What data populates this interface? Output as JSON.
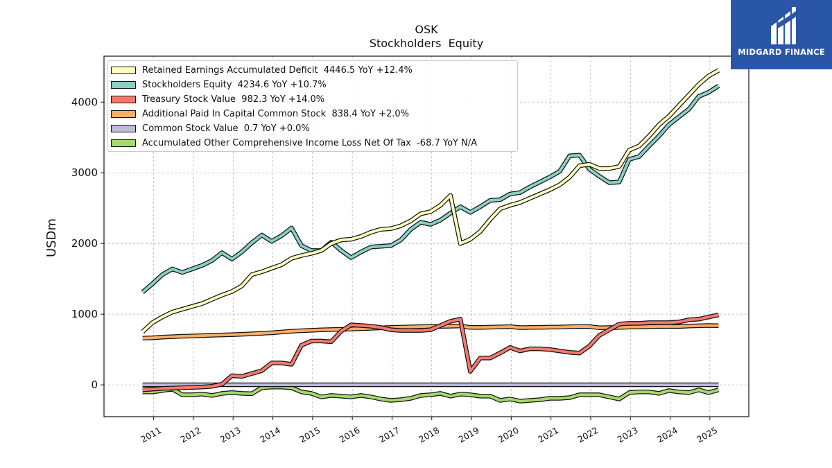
{
  "brand": {
    "name": "MIDGARD FINANCE",
    "background": "#2a56a8"
  },
  "chart_data": {
    "type": "line",
    "title": "OSK",
    "subtitle": "Stockholders  Equity",
    "ylabel": "USDm",
    "xlabel": "",
    "ylim": [
      -450,
      4650
    ],
    "xlim": [
      2009.75,
      2025.98
    ],
    "yticks": [
      0,
      1000,
      2000,
      3000,
      4000
    ],
    "xticks": [
      2011,
      2012,
      2013,
      2014,
      2015,
      2016,
      2017,
      2018,
      2019,
      2020,
      2021,
      2022,
      2023,
      2024,
      2025
    ],
    "grid": true,
    "legend_position": "top-left",
    "x": [
      2010.72,
      2010.97,
      2011.22,
      2011.47,
      2011.72,
      2011.97,
      2012.22,
      2012.47,
      2012.72,
      2012.97,
      2013.22,
      2013.47,
      2013.72,
      2013.97,
      2014.22,
      2014.47,
      2014.72,
      2014.97,
      2015.22,
      2015.47,
      2015.72,
      2015.97,
      2016.22,
      2016.47,
      2016.72,
      2016.97,
      2017.22,
      2017.47,
      2017.72,
      2017.97,
      2018.22,
      2018.47,
      2018.72,
      2018.97,
      2019.22,
      2019.47,
      2019.72,
      2019.97,
      2020.22,
      2020.47,
      2020.72,
      2020.97,
      2021.22,
      2021.47,
      2021.72,
      2021.97,
      2022.22,
      2022.47,
      2022.72,
      2022.97,
      2023.22,
      2023.47,
      2023.72,
      2023.97,
      2024.22,
      2024.47,
      2024.72,
      2024.97,
      2025.22
    ],
    "series": [
      {
        "name": "Retained Earnings Accumulated Deficit",
        "legend_label": "Retained Earnings Accumulated Deficit  4446.5 YoY +12.4%",
        "color": "#ffffbf",
        "values": [
          750,
          880,
          960,
          1030,
          1070,
          1110,
          1150,
          1210,
          1270,
          1320,
          1400,
          1560,
          1600,
          1650,
          1700,
          1790,
          1830,
          1860,
          1900,
          2000,
          2050,
          2060,
          2100,
          2160,
          2200,
          2210,
          2250,
          2320,
          2420,
          2450,
          2540,
          2680,
          2000,
          2060,
          2170,
          2340,
          2490,
          2540,
          2580,
          2640,
          2700,
          2760,
          2830,
          2940,
          3100,
          3120,
          3060,
          3060,
          3090,
          3320,
          3380,
          3520,
          3680,
          3800,
          3950,
          4100,
          4250,
          4370,
          4450
        ]
      },
      {
        "name": "Stockholders Equity",
        "legend_label": "Stockholders Equity  4234.6 YoY +10.7%",
        "color": "#88d0c4",
        "values": [
          1310,
          1430,
          1560,
          1640,
          1590,
          1640,
          1690,
          1760,
          1870,
          1780,
          1880,
          2010,
          2120,
          2030,
          2110,
          2220,
          1970,
          1900,
          1900,
          2020,
          1900,
          1800,
          1880,
          1950,
          1960,
          1970,
          2050,
          2200,
          2300,
          2270,
          2330,
          2430,
          2520,
          2440,
          2520,
          2610,
          2620,
          2700,
          2720,
          2800,
          2870,
          2940,
          3020,
          3240,
          3250,
          3050,
          2950,
          2860,
          2870,
          3190,
          3230,
          3380,
          3520,
          3680,
          3790,
          3900,
          4080,
          4140,
          4230
        ]
      },
      {
        "name": "Treasury Stock Value",
        "legend_label": "Treasury Stock Value  982.3 YoY +14.0%",
        "color": "#f4796d",
        "values": [
          -70,
          -60,
          -50,
          -45,
          -40,
          -35,
          -30,
          -20,
          10,
          130,
          120,
          160,
          200,
          310,
          310,
          290,
          560,
          620,
          620,
          610,
          760,
          850,
          840,
          830,
          810,
          780,
          770,
          770,
          770,
          780,
          840,
          900,
          930,
          190,
          380,
          380,
          450,
          530,
          480,
          510,
          510,
          500,
          480,
          460,
          450,
          550,
          700,
          780,
          860,
          870,
          870,
          880,
          880,
          880,
          890,
          920,
          930,
          960,
          990
        ]
      },
      {
        "name": "Additional Paid In Capital Common Stock",
        "legend_label": "Additional Paid In Capital Common Stock  838.4 YoY +2.0%",
        "color": "#f9ad66",
        "values": [
          660,
          665,
          675,
          682,
          688,
          692,
          697,
          702,
          706,
          710,
          716,
          722,
          730,
          737,
          748,
          758,
          766,
          772,
          778,
          782,
          786,
          790,
          796,
          800,
          806,
          812,
          816,
          820,
          824,
          826,
          828,
          830,
          834,
          812,
          812,
          816,
          820,
          824,
          810,
          812,
          814,
          816,
          818,
          822,
          826,
          824,
          808,
          810,
          812,
          818,
          820,
          824,
          826,
          828,
          826,
          832,
          836,
          840,
          838
        ]
      },
      {
        "name": "Common Stock Value",
        "legend_label": "Common Stock Value  0.7 YoY +0.0%",
        "color": "#bebada",
        "values": [
          0.7,
          0.7,
          0.7,
          0.7,
          0.7,
          0.7,
          0.7,
          0.7,
          0.7,
          0.7,
          0.7,
          0.7,
          0.7,
          0.7,
          0.7,
          0.7,
          0.7,
          0.7,
          0.7,
          0.7,
          0.7,
          0.7,
          0.7,
          0.7,
          0.7,
          0.7,
          0.7,
          0.7,
          0.7,
          0.7,
          0.7,
          0.7,
          0.7,
          0.7,
          0.7,
          0.7,
          0.7,
          0.7,
          0.7,
          0.7,
          0.7,
          0.7,
          0.7,
          0.7,
          0.7,
          0.7,
          0.7,
          0.7,
          0.7,
          0.7,
          0.7,
          0.7,
          0.7,
          0.7,
          0.7,
          0.7,
          0.7,
          0.7,
          0.7
        ]
      },
      {
        "name": "Accumulated Other Comprehensive Income Loss Net Of Tax",
        "legend_label": "Accumulated Other Comprehensive Income Loss Net Of Tax  -68.7 YoY N/A",
        "color": "#a6d96a",
        "values": [
          -100,
          -100,
          -80,
          -60,
          -140,
          -140,
          -130,
          -150,
          -120,
          -110,
          -120,
          -125,
          -40,
          -30,
          -30,
          -40,
          -100,
          -120,
          -170,
          -150,
          -160,
          -170,
          -150,
          -170,
          -200,
          -220,
          -210,
          -190,
          -150,
          -140,
          -120,
          -160,
          -130,
          -140,
          -160,
          -160,
          -220,
          -200,
          -230,
          -220,
          -210,
          -190,
          -190,
          -180,
          -140,
          -140,
          -140,
          -170,
          -200,
          -110,
          -100,
          -100,
          -120,
          -80,
          -100,
          -110,
          -70,
          -110,
          -70
        ]
      }
    ]
  }
}
